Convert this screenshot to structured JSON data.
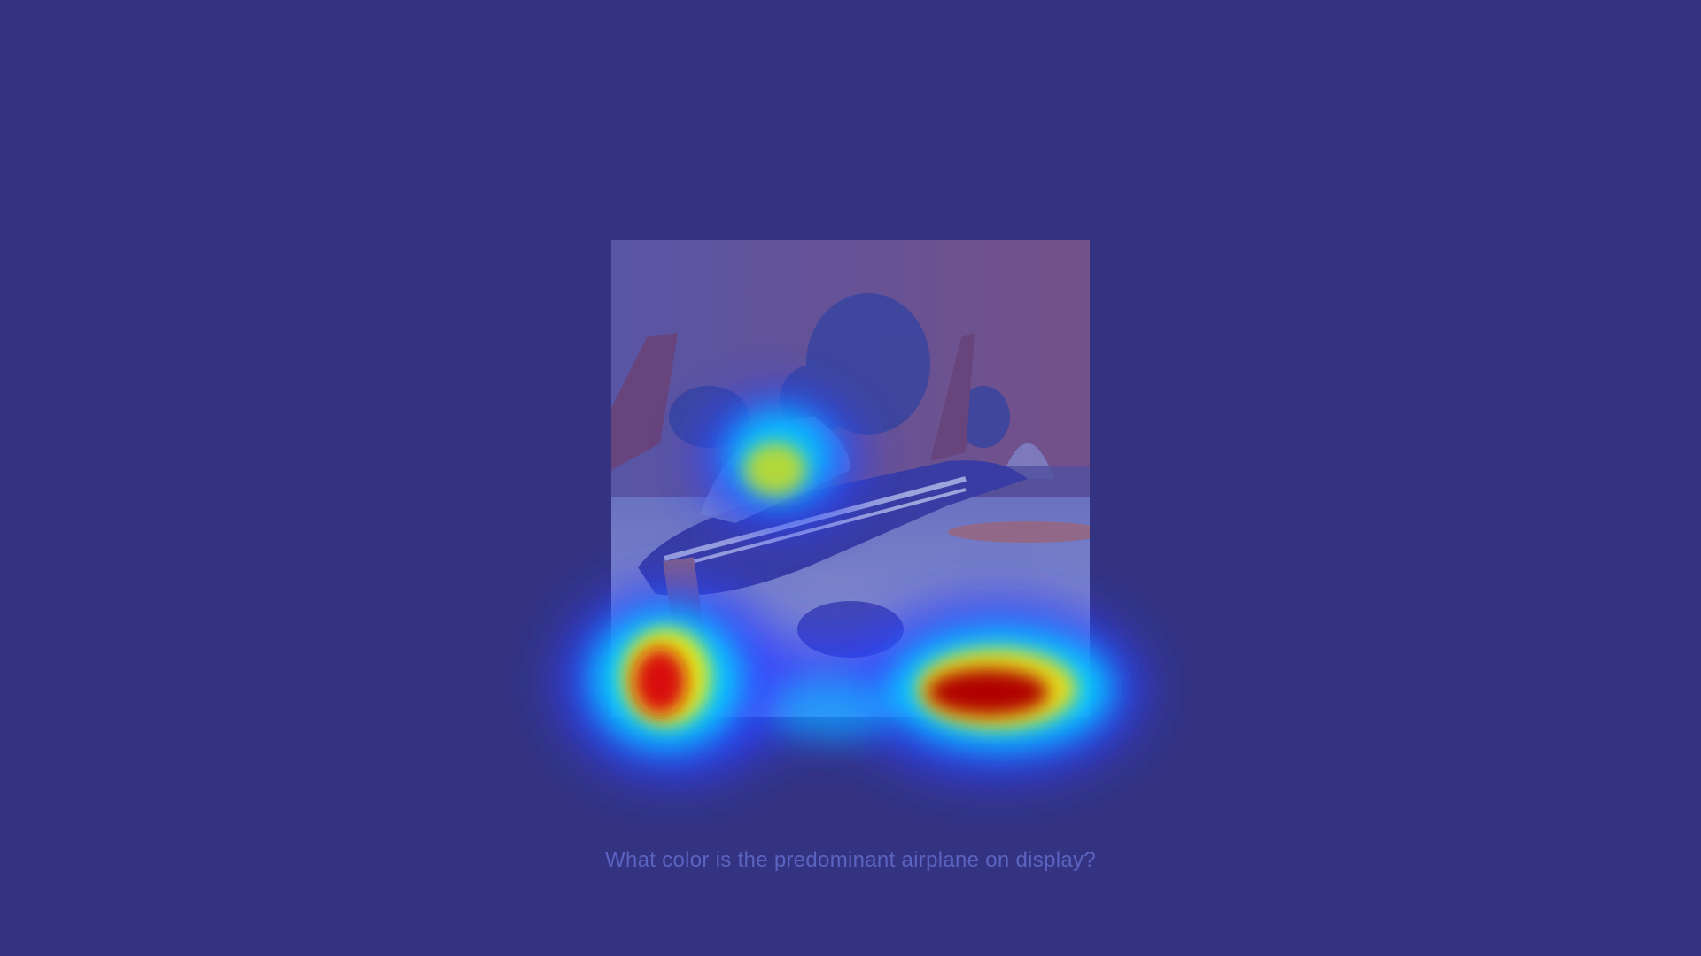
{
  "question": {
    "text": "What color is the predominant airplane on display?"
  },
  "photo": {
    "subject": "jet-airplane-display",
    "overlay_tint": "#343382"
  },
  "heatmap": {
    "colormap": [
      "#0000ff",
      "#00ffff",
      "#ffff00",
      "#ff0000"
    ]
  }
}
